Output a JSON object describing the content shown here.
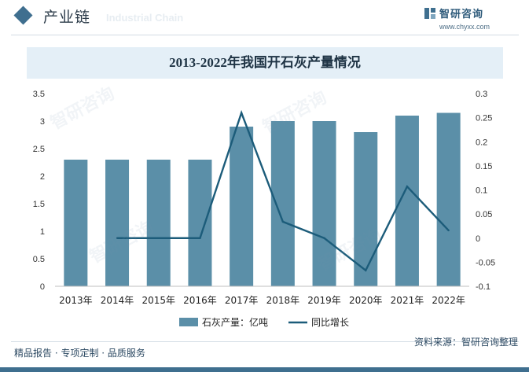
{
  "header": {
    "section_title": "产业链",
    "section_title_en": "Industrial Chain",
    "logo_text": "智研咨询",
    "logo_url": "www.chyxx.com"
  },
  "chart_data": {
    "type": "bar",
    "title": "2013-2022年我国开石灰产量情况",
    "categories": [
      "2013年",
      "2014年",
      "2015年",
      "2016年",
      "2017年",
      "2018年",
      "2019年",
      "2020年",
      "2021年",
      "2022年"
    ],
    "series": [
      {
        "name": "石灰产量：亿吨",
        "type": "bar",
        "axis": "left",
        "color": "#5b8fa8",
        "values": [
          2.3,
          2.3,
          2.3,
          2.3,
          2.9,
          3.0,
          3.0,
          2.8,
          3.1,
          3.15
        ]
      },
      {
        "name": "同比增长",
        "type": "line",
        "axis": "right",
        "color": "#1c5c7a",
        "values": [
          null,
          0.0,
          0.0,
          0.0,
          0.26,
          0.034,
          0.0,
          -0.067,
          0.107,
          0.016
        ]
      }
    ],
    "left_axis": {
      "min": 0,
      "max": 3.5,
      "ticks": [
        "0",
        "0.5",
        "1",
        "1.5",
        "2",
        "2.5",
        "3",
        "3.5"
      ]
    },
    "right_axis": {
      "min": -0.1,
      "max": 0.3,
      "ticks": [
        "-0.1",
        "-0.05",
        "0",
        "0.05",
        "0.1",
        "0.15",
        "0.2",
        "0.25",
        "0.3"
      ]
    },
    "legend_position": "bottom"
  },
  "footer": {
    "left": "精品报告 · 专项定制 · 品质服务",
    "right": "资料来源：智研咨询整理",
    "watermark": "智研咨询"
  },
  "colors": {
    "accent": "#3f6f8f",
    "bar": "#5b8fa8",
    "line": "#1c5c7a",
    "title_band": "#e4eff7"
  }
}
